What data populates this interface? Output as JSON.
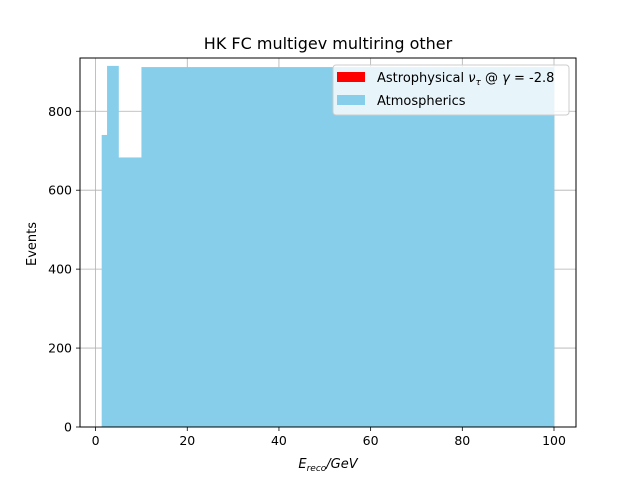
{
  "chart_data": {
    "type": "bar",
    "title": "HK FC multigev multiring other",
    "xlabel": {
      "main": "E",
      "sub": "reco",
      "suffix": "/GeV"
    },
    "ylabel": "Events",
    "xlim": [
      -3.4,
      104.8
    ],
    "ylim": [
      0,
      935
    ],
    "xticks": [
      0,
      20,
      40,
      60,
      80,
      100
    ],
    "yticks": [
      0,
      200,
      400,
      600,
      800
    ],
    "grid": true,
    "legend_position": "top-right",
    "colors": {
      "atmospherics": "#87ceeb",
      "astrophysical": "#ff0000"
    },
    "legend": [
      {
        "label_prefix": "Astrophysical ",
        "nu": "ν",
        "nu_sub": "τ",
        "mid": " @ ",
        "gamma": "γ",
        "eq": " = ",
        "value": "-2.8",
        "color": "#ff0000"
      },
      {
        "label": "Atmospherics",
        "color": "#87ceeb"
      }
    ],
    "series": [
      {
        "name": "Atmospherics",
        "bins": [
          {
            "x0": 1.33,
            "x1": 2.5,
            "value": 740
          },
          {
            "x0": 2.5,
            "x1": 5.0,
            "value": 915
          },
          {
            "x0": 5.0,
            "x1": 10.0,
            "value": 683
          },
          {
            "x0": 10.0,
            "x1": 100.0,
            "value": 912
          }
        ]
      },
      {
        "name": "Astrophysical",
        "bins": [
          {
            "x0": 1.33,
            "x1": 2.5,
            "value": 0
          },
          {
            "x0": 2.5,
            "x1": 5.0,
            "value": 0
          },
          {
            "x0": 5.0,
            "x1": 10.0,
            "value": 0
          },
          {
            "x0": 10.0,
            "x1": 100.0,
            "value": 0
          }
        ]
      }
    ]
  }
}
